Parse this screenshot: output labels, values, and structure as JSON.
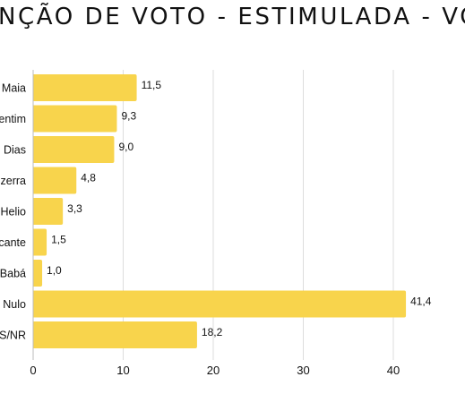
{
  "chart_data": {
    "type": "bar",
    "orientation": "horizontal",
    "title": "NÇÃO DE VOTO - ESTIMULADA - VO",
    "categories": [
      "Maia",
      "entim",
      "Dias",
      "zerra",
      "Helio",
      "cante",
      "Babá",
      "Nulo",
      "S/NR"
    ],
    "values": [
      11.5,
      9.3,
      9.0,
      4.8,
      3.3,
      1.5,
      1.0,
      41.4,
      18.2
    ],
    "value_labels": [
      "11,5",
      "9,3",
      "9,0",
      "4,8",
      "3,3",
      "1,5",
      "1,0",
      "41,4",
      "18,2"
    ],
    "xlim": [
      0,
      48
    ],
    "xticks": [
      0,
      10,
      20,
      30,
      40
    ],
    "xtick_labels": [
      "0",
      "10",
      "20",
      "30",
      "40"
    ],
    "xlabel": "",
    "ylabel": "",
    "grid": "vertical",
    "bar_color": "#F8D44C",
    "grid_color": "#DDDDDD"
  }
}
